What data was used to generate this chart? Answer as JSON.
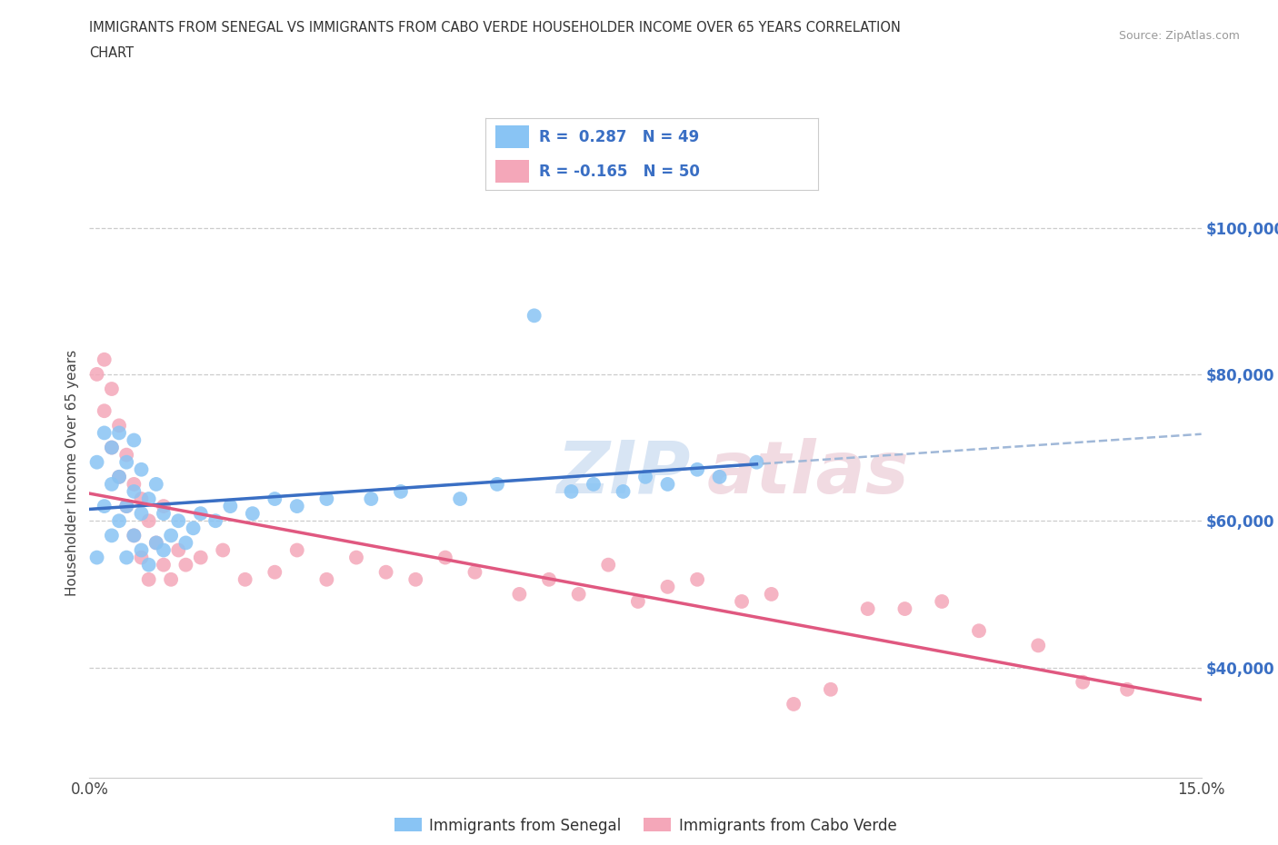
{
  "title_line1": "IMMIGRANTS FROM SENEGAL VS IMMIGRANTS FROM CABO VERDE HOUSEHOLDER INCOME OVER 65 YEARS CORRELATION",
  "title_line2": "CHART",
  "source": "Source: ZipAtlas.com",
  "ylabel": "Householder Income Over 65 years",
  "xmin": 0.0,
  "xmax": 0.15,
  "ymin": 25000,
  "ymax": 108000,
  "yticks": [
    40000,
    60000,
    80000,
    100000
  ],
  "ytick_labels": [
    "$40,000",
    "$60,000",
    "$80,000",
    "$100,000"
  ],
  "xticks": [
    0.0,
    0.025,
    0.05,
    0.075,
    0.1,
    0.125,
    0.15
  ],
  "xtick_labels": [
    "0.0%",
    "",
    "",
    "",
    "",
    "",
    "15.0%"
  ],
  "senegal_color": "#89c4f4",
  "caboverde_color": "#f4a7b9",
  "senegal_line_color": "#3a6fc4",
  "caboverde_line_color": "#e05880",
  "dashed_color": "#a0b8d8",
  "legend_label1": "Immigrants from Senegal",
  "legend_label2": "Immigrants from Cabo Verde",
  "senegal_x": [
    0.001,
    0.001,
    0.002,
    0.002,
    0.003,
    0.003,
    0.003,
    0.004,
    0.004,
    0.004,
    0.005,
    0.005,
    0.005,
    0.006,
    0.006,
    0.006,
    0.007,
    0.007,
    0.007,
    0.008,
    0.008,
    0.009,
    0.009,
    0.01,
    0.01,
    0.011,
    0.012,
    0.013,
    0.014,
    0.015,
    0.017,
    0.019,
    0.022,
    0.025,
    0.028,
    0.032,
    0.038,
    0.042,
    0.05,
    0.055,
    0.06,
    0.065,
    0.068,
    0.072,
    0.075,
    0.078,
    0.082,
    0.085,
    0.09
  ],
  "senegal_y": [
    55000,
    68000,
    62000,
    72000,
    58000,
    65000,
    70000,
    60000,
    66000,
    72000,
    55000,
    62000,
    68000,
    58000,
    64000,
    71000,
    56000,
    61000,
    67000,
    54000,
    63000,
    57000,
    65000,
    56000,
    61000,
    58000,
    60000,
    57000,
    59000,
    61000,
    60000,
    62000,
    61000,
    63000,
    62000,
    63000,
    63000,
    64000,
    63000,
    65000,
    88000,
    64000,
    65000,
    64000,
    66000,
    65000,
    67000,
    66000,
    68000
  ],
  "caboverde_x": [
    0.001,
    0.002,
    0.002,
    0.003,
    0.003,
    0.004,
    0.004,
    0.005,
    0.005,
    0.006,
    0.006,
    0.007,
    0.007,
    0.008,
    0.008,
    0.009,
    0.01,
    0.01,
    0.011,
    0.012,
    0.013,
    0.015,
    0.018,
    0.021,
    0.025,
    0.028,
    0.032,
    0.036,
    0.04,
    0.044,
    0.048,
    0.052,
    0.058,
    0.062,
    0.066,
    0.07,
    0.074,
    0.078,
    0.082,
    0.088,
    0.092,
    0.095,
    0.1,
    0.105,
    0.11,
    0.115,
    0.12,
    0.128,
    0.134,
    0.14
  ],
  "caboverde_y": [
    80000,
    75000,
    82000,
    70000,
    78000,
    66000,
    73000,
    62000,
    69000,
    58000,
    65000,
    55000,
    63000,
    52000,
    60000,
    57000,
    54000,
    62000,
    52000,
    56000,
    54000,
    55000,
    56000,
    52000,
    53000,
    56000,
    52000,
    55000,
    53000,
    52000,
    55000,
    53000,
    50000,
    52000,
    50000,
    54000,
    49000,
    51000,
    52000,
    49000,
    50000,
    35000,
    37000,
    48000,
    48000,
    49000,
    45000,
    43000,
    38000,
    37000
  ]
}
